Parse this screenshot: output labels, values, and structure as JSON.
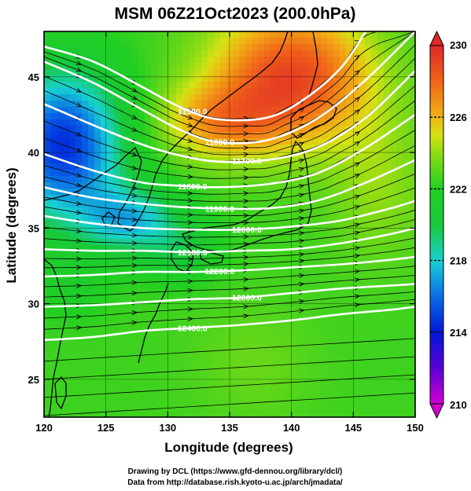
{
  "title": "MSM 06Z21Oct2023 (200.0hPa)",
  "x_axis": {
    "label": "Longitude (degrees)",
    "min": 120,
    "max": 150,
    "ticks": [
      "120",
      "125",
      "130",
      "135",
      "140",
      "145",
      "150"
    ]
  },
  "y_axis": {
    "label": "Latitude  (degrees)",
    "min": 22.5,
    "max": 48,
    "ticks": [
      "25",
      "30",
      "35",
      "40",
      "45"
    ]
  },
  "colorbar": {
    "min": 210,
    "max": 230,
    "tick_labels": [
      "230",
      "226",
      "222",
      "218",
      "214",
      "210"
    ],
    "stops": [
      {
        "v": 210,
        "c": "#d100d1"
      },
      {
        "v": 212,
        "c": "#5a00d8"
      },
      {
        "v": 214,
        "c": "#0018d8"
      },
      {
        "v": 216,
        "c": "#0a6ee6"
      },
      {
        "v": 218,
        "c": "#19d2d2"
      },
      {
        "v": 220,
        "c": "#18c83a"
      },
      {
        "v": 222,
        "c": "#22cf22"
      },
      {
        "v": 224,
        "c": "#8edc14"
      },
      {
        "v": 225,
        "c": "#d6e214"
      },
      {
        "v": 226,
        "c": "#f0b414"
      },
      {
        "v": 228,
        "c": "#f06418"
      },
      {
        "v": 230,
        "c": "#e02828"
      }
    ]
  },
  "contours": [
    {
      "label": "11500.0",
      "points": [
        [
          120,
          47
        ],
        [
          124,
          46
        ],
        [
          128,
          44.3
        ],
        [
          131,
          43
        ],
        [
          134,
          42.2
        ],
        [
          138,
          42.3
        ],
        [
          141,
          43.5
        ],
        [
          144,
          45.6
        ],
        [
          146,
          48
        ]
      ]
    },
    {
      "label": "11600.0",
      "points": [
        [
          120,
          46
        ],
        [
          124,
          44.6
        ],
        [
          128,
          42.8
        ],
        [
          131,
          41.5
        ],
        [
          134,
          40.7
        ],
        [
          138,
          40.8
        ],
        [
          142,
          42.2
        ],
        [
          146,
          44.8
        ],
        [
          150,
          48
        ]
      ]
    },
    {
      "label": "11700.0",
      "points": [
        [
          120,
          43.2
        ],
        [
          124,
          41.8
        ],
        [
          128,
          40.5
        ],
        [
          131,
          39.8
        ],
        [
          134,
          39.4
        ],
        [
          138,
          39.5
        ],
        [
          142,
          40.3
        ],
        [
          146,
          42.3
        ],
        [
          150,
          45.4
        ]
      ]
    },
    {
      "label": "11800.0",
      "points": [
        [
          120,
          39.9
        ],
        [
          124,
          38.8
        ],
        [
          128,
          38
        ],
        [
          131,
          37.8
        ],
        [
          134,
          37.7
        ],
        [
          138,
          37.9
        ],
        [
          142,
          38.6
        ],
        [
          146,
          40.3
        ],
        [
          150,
          42.5
        ]
      ]
    },
    {
      "label": "11900.0",
      "points": [
        [
          120,
          37.7
        ],
        [
          124,
          37
        ],
        [
          128,
          36.6
        ],
        [
          131,
          36.4
        ],
        [
          134,
          36.3
        ],
        [
          138,
          36.3
        ],
        [
          142,
          36.8
        ],
        [
          146,
          38
        ],
        [
          150,
          39.5
        ]
      ]
    },
    {
      "label": "12000.0",
      "points": [
        [
          120,
          35.8
        ],
        [
          124,
          35.3
        ],
        [
          128,
          35
        ],
        [
          132,
          34.9
        ],
        [
          136,
          34.9
        ],
        [
          140,
          35.1
        ],
        [
          144,
          35.5
        ],
        [
          148,
          36.3
        ],
        [
          150,
          36.8
        ]
      ]
    },
    {
      "label": "12100.0",
      "points": [
        [
          120,
          33.6
        ],
        [
          124,
          33.5
        ],
        [
          128,
          33.5
        ],
        [
          132,
          33.4
        ],
        [
          136,
          33.5
        ],
        [
          140,
          33.6
        ],
        [
          144,
          34
        ],
        [
          148,
          34.6
        ],
        [
          150,
          35
        ]
      ]
    },
    {
      "label": "12200.0",
      "points": [
        [
          120,
          31.8
        ],
        [
          124,
          31.9
        ],
        [
          128,
          32.1
        ],
        [
          132,
          32.1
        ],
        [
          136,
          32.2
        ],
        [
          140,
          32.4
        ],
        [
          144,
          32.6
        ],
        [
          148,
          32.9
        ],
        [
          150,
          33.1
        ]
      ]
    },
    {
      "label": "12300.0",
      "points": [
        [
          120,
          29.8
        ],
        [
          124,
          29.9
        ],
        [
          128,
          30.1
        ],
        [
          132,
          30.3
        ],
        [
          136,
          30.4
        ],
        [
          140,
          30.7
        ],
        [
          144,
          31
        ],
        [
          148,
          31.2
        ],
        [
          150,
          31.3
        ]
      ]
    },
    {
      "label": "12400.0",
      "points": [
        [
          120,
          27.6
        ],
        [
          124,
          27.8
        ],
        [
          128,
          28.2
        ],
        [
          132,
          28.4
        ],
        [
          136,
          28.6
        ],
        [
          140,
          28.9
        ],
        [
          144,
          29.3
        ],
        [
          148,
          29.6
        ],
        [
          150,
          29.8
        ]
      ]
    }
  ],
  "credits": {
    "line1": "Drawing by DCL (https://www.gfd-dennou.org/library/dcl/)",
    "line2": "Data from http://database.rish.kyoto-u.ac.jp/arch/jmadata/"
  }
}
